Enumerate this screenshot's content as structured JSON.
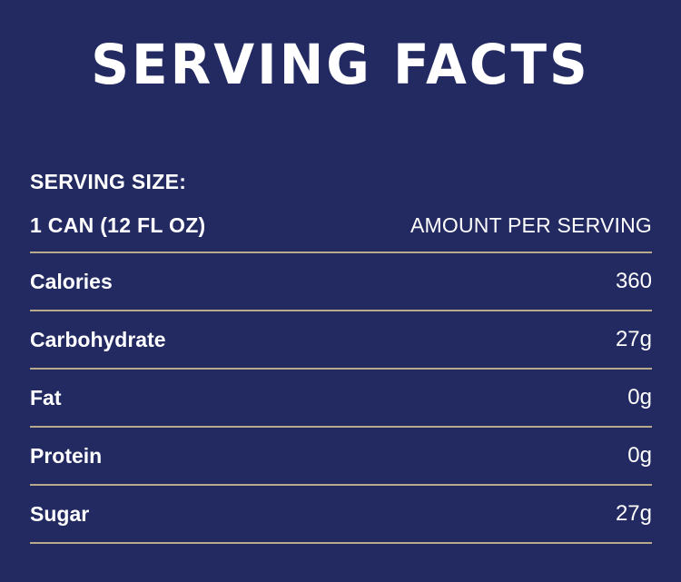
{
  "title": "SERVING FACTS",
  "serving": {
    "size_label": "SERVING SIZE:",
    "size_value": "1 CAN (12 FL OZ)",
    "amount_label": "AMOUNT PER SERVING"
  },
  "nutrients": [
    {
      "name": "Calories",
      "value": "360"
    },
    {
      "name": "Carbohydrate",
      "value": "27g"
    },
    {
      "name": "Fat",
      "value": "0g"
    },
    {
      "name": "Protein",
      "value": "0g"
    },
    {
      "name": "Sugar",
      "value": "27g"
    }
  ],
  "colors": {
    "background": "#232a62",
    "text": "#ffffff",
    "divider": "#b9ab8a"
  }
}
